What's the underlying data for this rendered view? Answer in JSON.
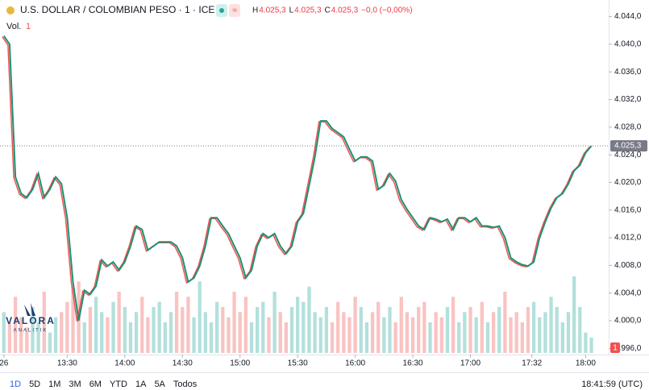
{
  "chart_data": {
    "type": "line",
    "title": "U.S. DOLLAR / COLOMBIAN PESO · 1 · ICE",
    "ohlc": [
      {
        "label": "H",
        "value": "4.025,3"
      },
      {
        "label": "L",
        "value": "4.025,3"
      },
      {
        "label": "C",
        "value": "4.025,3"
      }
    ],
    "change": "−0,0 (−0,00%)",
    "volume_label": "Vol.",
    "volume_count": "1",
    "volume_tag": "1",
    "last_label": "4.025,3",
    "logo": "VALORA",
    "logo_sub": "ANALITIK",
    "ranges": [
      "1D",
      "5D",
      "1M",
      "3M",
      "6M",
      "YTD",
      "1A",
      "5A",
      "Todos"
    ],
    "clock": "18:41:59 (UTC)",
    "x": [
      777,
      780,
      783,
      786,
      789,
      792,
      795,
      798,
      801,
      804,
      807,
      810,
      813,
      816,
      819,
      822,
      825,
      828,
      831,
      834,
      837,
      840,
      843,
      846,
      849,
      852,
      855,
      858,
      861,
      864,
      867,
      870,
      873,
      876,
      879,
      882,
      885,
      888,
      891,
      894,
      897,
      900,
      903,
      906,
      909,
      912,
      915,
      918,
      921,
      924,
      927,
      930,
      933,
      936,
      939,
      942,
      945,
      948,
      951,
      954,
      957,
      960,
      963,
      966,
      969,
      972,
      975,
      978,
      981,
      984,
      987,
      990,
      993,
      996,
      999,
      1002,
      1005,
      1008,
      1011,
      1014,
      1017,
      1020,
      1023,
      1026,
      1029,
      1032,
      1035,
      1038,
      1041,
      1044,
      1047,
      1050,
      1053,
      1056,
      1059,
      1062,
      1065,
      1068,
      1071,
      1074,
      1077,
      1080,
      1083
    ],
    "series": [
      {
        "name": "USD/COP",
        "color": "#1f8f72",
        "values": [
          4041.2,
          4040.0,
          4020.8,
          4018.4,
          4017.8,
          4019.0,
          4021.3,
          4017.8,
          4019.0,
          4020.8,
          4019.8,
          4014.9,
          4005.6,
          4000.0,
          4004.4,
          4003.8,
          4005.0,
          4008.8,
          4007.9,
          4008.5,
          4007.3,
          4008.5,
          4010.8,
          4013.7,
          4013.2,
          4010.2,
          4010.8,
          4011.4,
          4011.4,
          4011.4,
          4010.8,
          4009.1,
          4005.6,
          4006.2,
          4007.9,
          4010.8,
          4014.9,
          4014.9,
          4013.7,
          4012.6,
          4010.8,
          4009.1,
          4006.2,
          4007.3,
          4010.8,
          4012.6,
          4012.0,
          4012.6,
          4010.8,
          4009.7,
          4010.8,
          4014.3,
          4015.5,
          4019.6,
          4023.7,
          4028.9,
          4028.9,
          4027.8,
          4027.2,
          4026.6,
          4024.8,
          4023.1,
          4023.7,
          4023.7,
          4023.1,
          4019.0,
          4019.6,
          4021.3,
          4020.2,
          4017.5,
          4016.1,
          4014.9,
          4013.7,
          4013.2,
          4014.9,
          4014.7,
          4014.3,
          4014.7,
          4013.2,
          4014.9,
          4014.9,
          4014.3,
          4014.9,
          4013.7,
          4013.7,
          4013.5,
          4013.7,
          4012.0,
          4009.1,
          4008.5,
          4008.1,
          4007.9,
          4008.5,
          4012.0,
          4014.3,
          4016.3,
          4017.8,
          4018.4,
          4019.8,
          4021.7,
          4022.5,
          4024.3,
          4025.3
        ]
      }
    ],
    "volume": [
      40,
      30,
      55,
      35,
      25,
      45,
      30,
      60,
      20,
      35,
      40,
      50,
      65,
      70,
      30,
      45,
      55,
      40,
      35,
      50,
      60,
      45,
      30,
      40,
      55,
      35,
      45,
      50,
      30,
      40,
      60,
      45,
      55,
      35,
      70,
      40,
      30,
      50,
      45,
      35,
      60,
      40,
      55,
      30,
      45,
      50,
      35,
      60,
      40,
      30,
      45,
      55,
      50,
      65,
      40,
      35,
      45,
      30,
      50,
      40,
      35,
      55,
      45,
      30,
      40,
      50,
      35,
      45,
      30,
      55,
      40,
      35,
      45,
      50,
      30,
      40,
      35,
      45,
      55,
      30,
      40,
      45,
      35,
      50,
      30,
      40,
      45,
      60,
      35,
      40,
      30,
      45,
      50,
      35,
      40,
      55,
      45,
      30,
      40,
      75,
      45,
      20,
      15
    ],
    "xlim": [
      775,
      1092
    ],
    "ylim": [
      3995.1,
      4046.4
    ],
    "yticks": [
      {
        "value": 4044,
        "label": "4.044,0"
      },
      {
        "value": 4040,
        "label": "4.040,0"
      },
      {
        "value": 4036,
        "label": "4.036,0"
      },
      {
        "value": 4032,
        "label": "4.032,0"
      },
      {
        "value": 4028,
        "label": "4.028,0"
      },
      {
        "value": 4024,
        "label": "4.024,0"
      },
      {
        "value": 4020,
        "label": "4.020,0"
      },
      {
        "value": 4016,
        "label": "4.016,0"
      },
      {
        "value": 4012,
        "label": "4.012,0"
      },
      {
        "value": 4008,
        "label": "4.008,0"
      },
      {
        "value": 4004,
        "label": "4.004,0"
      },
      {
        "value": 4000,
        "label": "4.000,0"
      },
      {
        "value": 3996,
        "label": "3.996,0"
      }
    ],
    "xticks": [
      {
        "value": 777,
        "label": "26"
      },
      {
        "value": 810,
        "label": "13:30"
      },
      {
        "value": 840,
        "label": "14:00"
      },
      {
        "value": 870,
        "label": "14:30"
      },
      {
        "value": 900,
        "label": "15:00"
      },
      {
        "value": 930,
        "label": "15:30"
      },
      {
        "value": 960,
        "label": "16:00"
      },
      {
        "value": 990,
        "label": "16:30"
      },
      {
        "value": 1020,
        "label": "17:00"
      },
      {
        "value": 1052,
        "label": "17:32"
      },
      {
        "value": 1080,
        "label": "18:00"
      }
    ],
    "up_color": "#26a69a",
    "down_color": "#ef5350"
  }
}
